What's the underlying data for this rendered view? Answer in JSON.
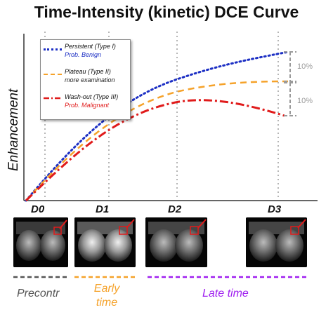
{
  "title": "Time-Intensity (kinetic) DCE Curve",
  "y_axis_label": "Enhancement",
  "time_points": [
    "D0",
    "D1",
    "D2",
    "D3"
  ],
  "legend": [
    {
      "type_label": "Persistent  (Type I)",
      "meaning": "Prob. Benign",
      "line_color": "#1c2fc4",
      "meaning_color": "#1c2fc4",
      "style": "dotted"
    },
    {
      "type_label": "Plateau      (Type II)",
      "meaning": "more examination",
      "line_color": "#f5a22a",
      "meaning_color": "#222222",
      "style": "dashed"
    },
    {
      "type_label": "Wash-out  (Type III)",
      "meaning": "Prob. Malignant",
      "line_color": "#e01b1b",
      "meaning_color": "#e01b1b",
      "style": "dashdot"
    }
  ],
  "differences": [
    "10%",
    "10%"
  ],
  "phases": [
    {
      "label": "Precontr",
      "color": "#555555"
    },
    {
      "label": "Early time",
      "color": "#f5a22a"
    },
    {
      "label": "Late time",
      "color": "#a020f0"
    }
  ],
  "images": [
    {
      "name": "mri-d0",
      "icon": "breast-mri-scan"
    },
    {
      "name": "mri-d1",
      "icon": "breast-mri-scan"
    },
    {
      "name": "mri-d2",
      "icon": "breast-mri-scan"
    },
    {
      "name": "mri-d3",
      "icon": "breast-mri-scan"
    }
  ]
}
